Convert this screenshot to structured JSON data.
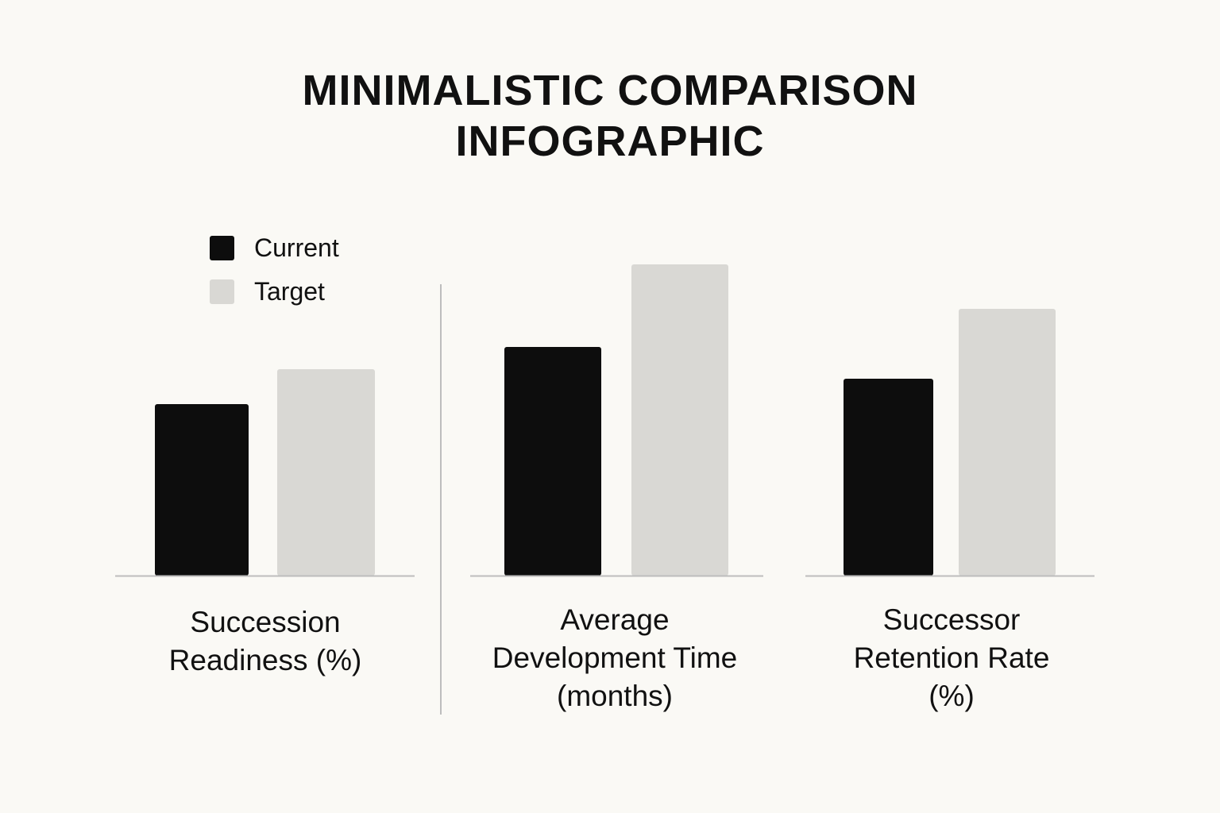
{
  "title_lines": [
    "MINIMALISTIC COMPARISON",
    "INFOGRAPHIC"
  ],
  "colors": {
    "background": "#faf9f5",
    "current": "#0d0d0d",
    "target": "#d9d8d4",
    "axis": "#bdbdbd",
    "text": "#111111"
  },
  "chart_data": {
    "type": "bar",
    "title": "MINIMALISTIC COMPARISON INFOGRAPHIC",
    "legend": {
      "placement": "top-left",
      "entries": [
        "Current",
        "Target"
      ]
    },
    "grid": false,
    "panels": [
      {
        "label_lines": [
          "Succession",
          "Readiness (%)"
        ],
        "series": [
          {
            "name": "Current",
            "value": 54
          },
          {
            "name": "Target",
            "value": 65
          }
        ]
      },
      {
        "label_lines": [
          "Average",
          "Development Time",
          "(months)"
        ],
        "series": [
          {
            "name": "Current",
            "value": 72
          },
          {
            "name": "Target",
            "value": 98
          }
        ]
      },
      {
        "label_lines": [
          "Successor",
          "Retention Rate",
          "(%)"
        ],
        "series": [
          {
            "name": "Current",
            "value": 62
          },
          {
            "name": "Target",
            "value": 84
          }
        ]
      }
    ]
  }
}
